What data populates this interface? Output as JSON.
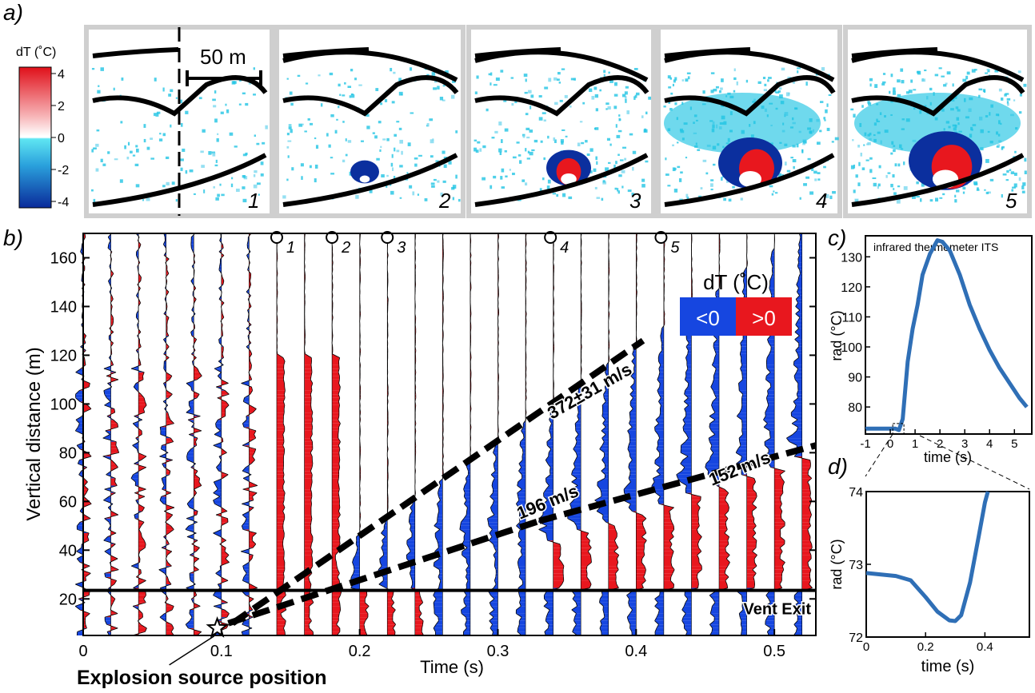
{
  "panel_labels": {
    "a": "a)",
    "b": "b)",
    "c": "c)",
    "d": "d)"
  },
  "panel_a": {
    "colorbar_title": "dT (˚C)",
    "colorbar_ticks": [
      "4",
      "2",
      "0",
      "-2",
      "-4"
    ],
    "scale_bar_label": "50 m",
    "frame_numbers": [
      "1",
      "2",
      "3",
      "4",
      "5"
    ]
  },
  "colors": {
    "positive": "#e8171e",
    "negative": "#1646e0",
    "cyan": "#22c4e4",
    "frame_border": "#cfcfcf",
    "curve": "#2f6fb6"
  },
  "chart_data": [
    {
      "id": "b",
      "type": "area",
      "title": "",
      "xlabel": "Time (s)",
      "ylabel": "Vertical distance (m)",
      "xlim": [
        0,
        0.53
      ],
      "ylim": [
        5,
        170
      ],
      "xticks": [
        0,
        0.1,
        0.2,
        0.3,
        0.4,
        0.5
      ],
      "xtick_labels": [
        "0",
        "0.1",
        "0.2",
        "0.3",
        "0.4",
        "0.5"
      ],
      "yticks": [
        20,
        40,
        60,
        80,
        100,
        120,
        140,
        160
      ],
      "ytick_labels": [
        "20",
        "40",
        "60",
        "80",
        "100",
        "120",
        "140",
        "160"
      ],
      "legend": {
        "title": "dT (˚C)",
        "entries": [
          "<0",
          ">0"
        ],
        "placement": "top-right"
      },
      "frame_markers": {
        "labels": [
          "1",
          "2",
          "3",
          "4",
          "5"
        ],
        "times": [
          0.14,
          0.18,
          0.22,
          0.338,
          0.418
        ]
      },
      "velocity_lines": [
        {
          "label": "372±31 m/s",
          "x": [
            0.108,
            0.405
          ],
          "y": [
            10,
            126
          ]
        },
        {
          "label": "196 m/s",
          "x": [
            0.105,
            0.33
          ],
          "y": [
            10,
            52
          ]
        },
        {
          "label": "152 m/s",
          "x": [
            0.33,
            0.53
          ],
          "y": [
            52,
            83
          ]
        }
      ],
      "vent_exit": {
        "label": "Vent Exit",
        "y": 23.5
      },
      "source": {
        "label": "Explosion source position",
        "x": 0.097,
        "y": 8
      },
      "trace_times": [
        0,
        0.02,
        0.04,
        0.06,
        0.08,
        0.1,
        0.12,
        0.14,
        0.16,
        0.18,
        0.2,
        0.22,
        0.24,
        0.26,
        0.28,
        0.3,
        0.32,
        0.34,
        0.36,
        0.38,
        0.4,
        0.42,
        0.44,
        0.46,
        0.48,
        0.5,
        0.52
      ]
    },
    {
      "id": "c",
      "type": "line",
      "title": "infrared thermometer ITS",
      "xlabel": "time (s)",
      "ylabel": "rad (°C)",
      "xlim": [
        -1,
        5.7
      ],
      "ylim": [
        71,
        137
      ],
      "xticks": [
        -1,
        0,
        1,
        2,
        3,
        4,
        5
      ],
      "xtick_labels": [
        "-1",
        "0",
        "1",
        "2",
        "3",
        "4",
        "5"
      ],
      "yticks": [
        80,
        90,
        100,
        110,
        120,
        130
      ],
      "ytick_labels": [
        "80",
        "90",
        "100",
        "110",
        "120",
        "130"
      ],
      "series": [
        {
          "x": [
            -1,
            0.2,
            0.35,
            0.5,
            0.7,
            0.9,
            1.1,
            1.3,
            1.6,
            1.9,
            2.1,
            2.4,
            2.8,
            3.2,
            3.6,
            4.0,
            4.4,
            4.8,
            5.2,
            5.5
          ],
          "values": [
            72.8,
            72.8,
            72.3,
            76,
            95,
            106,
            114,
            124,
            131,
            135.5,
            135,
            132,
            124,
            114,
            106,
            99,
            93,
            88,
            83,
            80
          ]
        }
      ]
    },
    {
      "id": "d",
      "type": "line",
      "title": "",
      "xlabel": "time (s)",
      "ylabel": "rad (°C)",
      "xlim": [
        0,
        0.55
      ],
      "ylim": [
        72,
        74
      ],
      "xticks": [
        0,
        0.2,
        0.4
      ],
      "xtick_labels": [
        "0",
        "0.2",
        "0.4"
      ],
      "yticks": [
        72,
        73,
        74
      ],
      "ytick_labels": [
        "72",
        "73",
        "74"
      ],
      "series": [
        {
          "x": [
            0,
            0.05,
            0.1,
            0.15,
            0.2,
            0.24,
            0.28,
            0.3,
            0.32,
            0.35,
            0.38,
            0.4,
            0.41
          ],
          "values": [
            72.88,
            72.86,
            72.84,
            72.78,
            72.55,
            72.35,
            72.23,
            72.22,
            72.3,
            72.75,
            73.4,
            73.85,
            74.0
          ]
        }
      ]
    }
  ]
}
